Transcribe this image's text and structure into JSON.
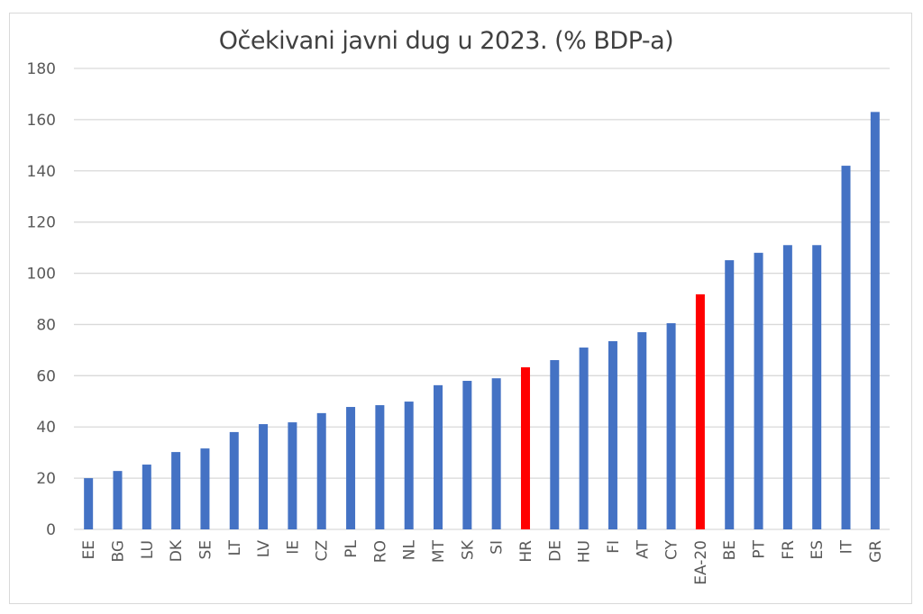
{
  "chart_data": {
    "type": "bar",
    "title": "Očekivani javni dug u 2023. (% BDP-a)",
    "xlabel": "",
    "ylabel": "",
    "ylim": [
      0,
      180
    ],
    "yticks": [
      0,
      20,
      40,
      60,
      80,
      100,
      120,
      140,
      160,
      180
    ],
    "grid": true,
    "categories": [
      "EE",
      "BG",
      "LU",
      "DK",
      "SE",
      "LT",
      "LV",
      "IE",
      "CZ",
      "PL",
      "RO",
      "NL",
      "MT",
      "SK",
      "SI",
      "HR",
      "DE",
      "HU",
      "FI",
      "AT",
      "CY",
      "EA-20",
      "BE",
      "PT",
      "FR",
      "ES",
      "IT",
      "GR"
    ],
    "values": [
      20,
      22.8,
      25.3,
      30.2,
      31.6,
      38,
      41.1,
      41.8,
      45.4,
      47.8,
      48.5,
      49.9,
      56.3,
      58,
      59,
      63.3,
      66.1,
      71,
      73.5,
      77,
      80.5,
      91.8,
      105.1,
      108,
      111,
      111,
      142,
      163
    ],
    "highlighted": [
      "HR",
      "EA-20"
    ],
    "colors": {
      "bar": "#4472c4",
      "highlight": "#ff0000",
      "grid": "#d9d9d9",
      "text": "#595959"
    }
  }
}
